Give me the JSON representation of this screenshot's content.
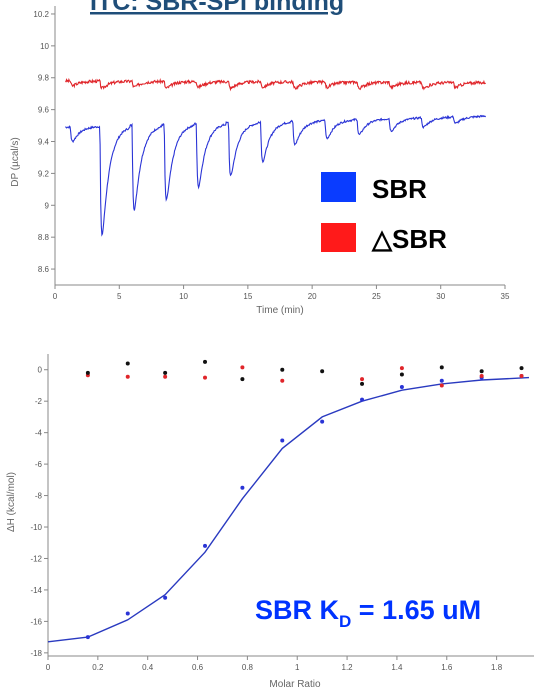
{
  "title": "ITC: SBR-SPI binding",
  "colors": {
    "sbr": "#2a34d6",
    "delta_sbr": "#e0252a",
    "control_points": "#111111",
    "fit_line": "#2a3ac0",
    "title": "#1f4e79",
    "annotation": "#0033ff",
    "legend_sbr": "#0a3cff",
    "legend_delta": "#ff1a1a"
  },
  "legend": [
    {
      "label": "SBR",
      "color": "#0a3cff"
    },
    {
      "label": "△SBR",
      "color": "#ff1a1a"
    }
  ],
  "annotation": {
    "prefix": "SBR K",
    "subscript": "D",
    "suffix": " = 1.65 uM"
  },
  "chart_data": [
    {
      "type": "line",
      "title": "ITC: SBR-SPI binding",
      "xlabel": "Time (min)",
      "ylabel": "DP (µcal/s)",
      "xlim": [
        0,
        35
      ],
      "ylim": [
        8.5,
        10.25
      ],
      "x_ticks": [
        "0",
        "5",
        "10",
        "15",
        "20",
        "25",
        "30",
        "35"
      ],
      "x_tick_values": [
        0,
        5,
        10,
        15,
        20,
        25,
        30,
        35
      ],
      "y_ticks": [
        "8.6",
        "8.8",
        "9",
        "9.2",
        "9.4",
        "9.6",
        "9.8",
        "10",
        "10.2"
      ],
      "y_tick_values": [
        8.6,
        8.8,
        9.0,
        9.2,
        9.4,
        9.6,
        9.8,
        10.0,
        10.2
      ],
      "grid": false,
      "series": [
        {
          "name": "SBR",
          "color": "#2a34d6",
          "baseline_start": 9.49,
          "baseline_end": 9.56,
          "x_range": [
            0.8,
            33.5
          ],
          "injections": [
            {
              "x": 1.2,
              "min": 9.37
            },
            {
              "x": 3.5,
              "min": 8.58
            },
            {
              "x": 6.0,
              "min": 8.79
            },
            {
              "x": 8.5,
              "min": 8.87
            },
            {
              "x": 11.0,
              "min": 8.98
            },
            {
              "x": 13.5,
              "min": 9.07
            },
            {
              "x": 16.0,
              "min": 9.19
            },
            {
              "x": 18.5,
              "min": 9.33
            },
            {
              "x": 21.0,
              "min": 9.38
            },
            {
              "x": 23.5,
              "min": 9.41
            },
            {
              "x": 26.0,
              "min": 9.44
            },
            {
              "x": 28.5,
              "min": 9.47
            },
            {
              "x": 31.0,
              "min": 9.5
            }
          ]
        },
        {
          "name": "△SBR",
          "color": "#e0252a",
          "baseline_start": 9.78,
          "baseline_end": 9.77,
          "x_range": [
            0.8,
            33.5
          ],
          "injections": [
            {
              "x": 1.2,
              "min": 9.74
            },
            {
              "x": 3.5,
              "min": 9.72
            },
            {
              "x": 6.0,
              "min": 9.73
            },
            {
              "x": 8.5,
              "min": 9.72
            },
            {
              "x": 11.0,
              "min": 9.73
            },
            {
              "x": 13.5,
              "min": 9.72
            },
            {
              "x": 16.0,
              "min": 9.73
            },
            {
              "x": 18.5,
              "min": 9.72
            },
            {
              "x": 21.0,
              "min": 9.73
            },
            {
              "x": 23.5,
              "min": 9.72
            },
            {
              "x": 26.0,
              "min": 9.73
            },
            {
              "x": 28.5,
              "min": 9.72
            },
            {
              "x": 31.0,
              "min": 9.73
            }
          ]
        }
      ]
    },
    {
      "type": "scatter",
      "xlabel": "Molar Ratio",
      "ylabel": "ΔH (kcal/mol)",
      "xlim": [
        0,
        1.95
      ],
      "ylim": [
        -18.2,
        1.0
      ],
      "x_ticks": [
        "0",
        "0.2",
        "0.4",
        "0.6",
        "0.8",
        "1",
        "1.2",
        "1.4",
        "1.6",
        "1.8"
      ],
      "x_tick_values": [
        0,
        0.2,
        0.4,
        0.6,
        0.8,
        1.0,
        1.2,
        1.4,
        1.6,
        1.8
      ],
      "y_ticks": [
        "0",
        "-2",
        "-4",
        "-6",
        "-8",
        "-10",
        "-12",
        "-14",
        "-16",
        "-18"
      ],
      "y_tick_values": [
        0,
        -2,
        -4,
        -6,
        -8,
        -10,
        -12,
        -14,
        -16,
        -18
      ],
      "grid": false,
      "series": [
        {
          "name": "SBR",
          "color": "#2a34d6",
          "points": [
            [
              0.16,
              -17.0
            ],
            [
              0.32,
              -15.5
            ],
            [
              0.47,
              -14.5
            ],
            [
              0.63,
              -11.2
            ],
            [
              0.78,
              -7.5
            ],
            [
              0.94,
              -4.5
            ],
            [
              1.1,
              -3.3
            ],
            [
              1.26,
              -1.9
            ],
            [
              1.42,
              -1.1
            ],
            [
              1.58,
              -0.7
            ],
            [
              1.74,
              -0.5
            ],
            [
              1.9,
              -0.4
            ]
          ]
        },
        {
          "name": "△SBR",
          "color": "#e0252a",
          "points": [
            [
              0.16,
              -0.35
            ],
            [
              0.32,
              -0.45
            ],
            [
              0.47,
              -0.45
            ],
            [
              0.63,
              -0.5
            ],
            [
              0.78,
              0.15
            ],
            [
              0.94,
              -0.7
            ],
            [
              1.26,
              -0.6
            ],
            [
              1.42,
              0.1
            ],
            [
              1.58,
              -1.0
            ],
            [
              1.74,
              -0.4
            ],
            [
              1.9,
              -0.4
            ]
          ]
        },
        {
          "name": "control",
          "color": "#111111",
          "points": [
            [
              0.16,
              -0.2
            ],
            [
              0.32,
              0.4
            ],
            [
              0.47,
              -0.2
            ],
            [
              0.63,
              0.5
            ],
            [
              0.78,
              -0.6
            ],
            [
              0.94,
              0.0
            ],
            [
              1.1,
              -0.1
            ],
            [
              1.26,
              -0.9
            ],
            [
              1.42,
              -0.3
            ],
            [
              1.58,
              0.15
            ],
            [
              1.74,
              -0.1
            ],
            [
              1.9,
              0.1
            ]
          ]
        },
        {
          "name": "fit",
          "type": "line",
          "color": "#2a3ac0",
          "points": [
            [
              0.0,
              -17.3
            ],
            [
              0.16,
              -17.0
            ],
            [
              0.32,
              -15.9
            ],
            [
              0.47,
              -14.3
            ],
            [
              0.63,
              -11.6
            ],
            [
              0.78,
              -8.2
            ],
            [
              0.94,
              -5.0
            ],
            [
              1.1,
              -3.0
            ],
            [
              1.26,
              -2.0
            ],
            [
              1.42,
              -1.3
            ],
            [
              1.58,
              -0.9
            ],
            [
              1.74,
              -0.65
            ],
            [
              1.93,
              -0.5
            ]
          ]
        }
      ]
    }
  ]
}
